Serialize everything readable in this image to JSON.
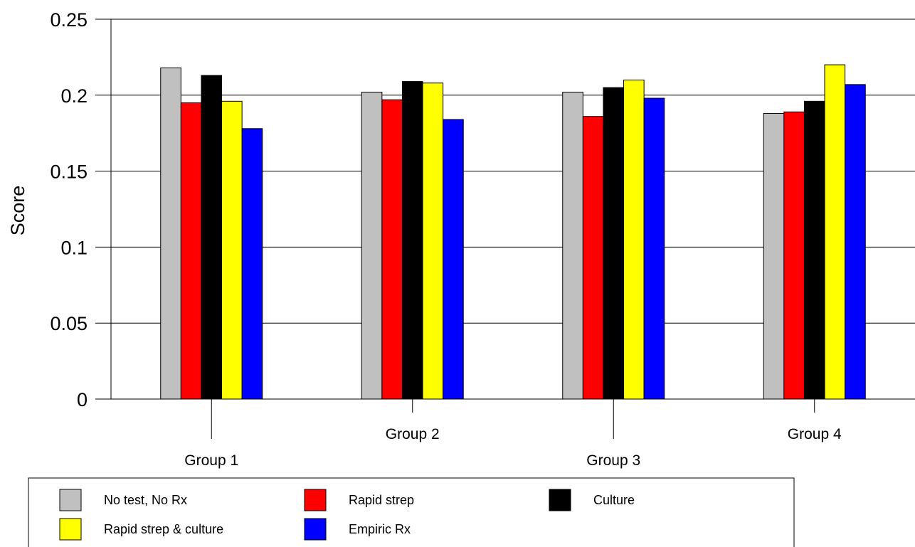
{
  "chart_data": {
    "type": "bar",
    "title": "",
    "xlabel": "",
    "ylabel": "Score",
    "ylim": [
      0,
      0.25
    ],
    "yticks": [
      {
        "value": 0,
        "label": "0"
      },
      {
        "value": 0.05,
        "label": "0.05"
      },
      {
        "value": 0.1,
        "label": "0.1"
      },
      {
        "value": 0.15,
        "label": "0.15"
      },
      {
        "value": 0.2,
        "label": "0.2"
      },
      {
        "value": 0.25,
        "label": "0.25"
      }
    ],
    "grid": true,
    "legend_position": "bottom",
    "categories": [
      "Group 1",
      "Group 2",
      "Group 3",
      "Group 4"
    ],
    "series": [
      {
        "name": "No test, No Rx",
        "color": "#c0c0c0",
        "values": [
          0.218,
          0.202,
          0.202,
          0.188
        ]
      },
      {
        "name": "Rapid strep",
        "color": "#ff0000",
        "values": [
          0.195,
          0.197,
          0.186,
          0.189
        ]
      },
      {
        "name": "Culture",
        "color": "#000000",
        "values": [
          0.213,
          0.209,
          0.205,
          0.196
        ]
      },
      {
        "name": "Rapid strep & culture",
        "color": "#ffff00",
        "values": [
          0.196,
          0.208,
          0.21,
          0.22
        ]
      },
      {
        "name": "Empiric Rx",
        "color": "#0000ff",
        "values": [
          0.178,
          0.184,
          0.198,
          0.207
        ]
      }
    ]
  }
}
